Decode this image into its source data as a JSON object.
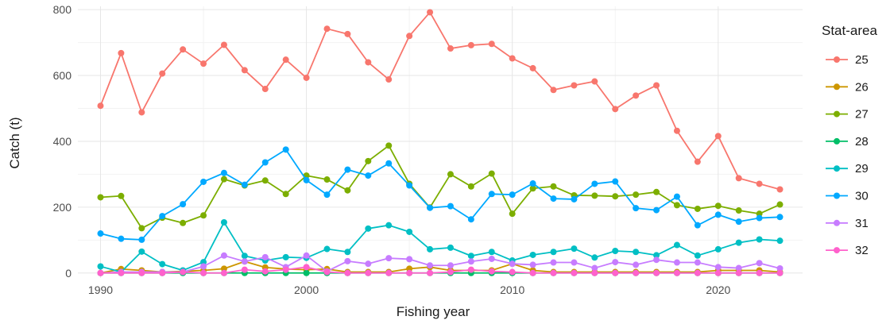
{
  "chart_data": {
    "type": "line",
    "title": "",
    "xlabel": "Fishing year",
    "ylabel": "Catch (t)",
    "xlim": [
      1988.9,
      2024.1
    ],
    "ylim": [
      -15,
      810
    ],
    "x_ticks": [
      1990,
      2000,
      2010,
      2020
    ],
    "y_ticks": [
      0,
      200,
      400,
      600,
      800
    ],
    "grid": true,
    "legend": {
      "title": "Stat-area",
      "position": "right"
    },
    "x": [
      1990,
      1991,
      1992,
      1993,
      1994,
      1995,
      1996,
      1997,
      1998,
      1999,
      2000,
      2001,
      2002,
      2003,
      2004,
      2005,
      2006,
      2007,
      2008,
      2009,
      2010,
      2011,
      2012,
      2013,
      2014,
      2015,
      2016,
      2017,
      2018,
      2019,
      2020,
      2021,
      2022,
      2023
    ],
    "series": [
      {
        "name": "25",
        "color": "#F8766D",
        "values": [
          508,
          668,
          488,
          606,
          679,
          636,
          693,
          616,
          559,
          648,
          593,
          742,
          726,
          640,
          588,
          720,
          792,
          682,
          692,
          696,
          652,
          622,
          556,
          570,
          582,
          498,
          539,
          570,
          432,
          338,
          416,
          288,
          271,
          254
        ]
      },
      {
        "name": "26",
        "color": "#CD9600",
        "values": [
          0,
          12,
          8,
          3,
          5,
          8,
          13,
          35,
          17,
          12,
          10,
          12,
          3,
          3,
          3,
          13,
          18,
          8,
          8,
          8,
          28,
          8,
          3,
          3,
          3,
          3,
          3,
          3,
          3,
          3,
          8,
          8,
          8,
          3
        ]
      },
      {
        "name": "27",
        "color": "#7CAE00",
        "values": [
          230,
          234,
          136,
          168,
          152,
          175,
          285,
          266,
          281,
          240,
          296,
          284,
          251,
          340,
          387,
          271,
          199,
          300,
          263,
          302,
          180,
          257,
          263,
          236,
          235,
          233,
          238,
          246,
          206,
          195,
          204,
          190,
          180,
          208
        ]
      },
      {
        "name": "28",
        "color": "#00BE67",
        "values": [
          0,
          0,
          0,
          0,
          0,
          0,
          0,
          0,
          0,
          0,
          0,
          0,
          0,
          0,
          0,
          0,
          0,
          0,
          0,
          0,
          0,
          0,
          0,
          0,
          0,
          0,
          0,
          0,
          0,
          0,
          0,
          0,
          0,
          0
        ]
      },
      {
        "name": "29",
        "color": "#00BFC4",
        "values": [
          20,
          3,
          65,
          27,
          8,
          33,
          154,
          52,
          38,
          48,
          46,
          73,
          64,
          135,
          145,
          125,
          72,
          77,
          52,
          64,
          38,
          55,
          64,
          74,
          47,
          67,
          64,
          54,
          85,
          53,
          72,
          92,
          102,
          98
        ]
      },
      {
        "name": "30",
        "color": "#00A9FF",
        "values": [
          120,
          104,
          101,
          173,
          209,
          277,
          304,
          268,
          336,
          375,
          282,
          238,
          314,
          296,
          333,
          266,
          198,
          203,
          163,
          240,
          238,
          272,
          226,
          224,
          271,
          278,
          197,
          191,
          232,
          145,
          177,
          156,
          167,
          170
        ]
      },
      {
        "name": "31",
        "color": "#C77CFF",
        "values": [
          0,
          3,
          3,
          3,
          3,
          20,
          53,
          35,
          48,
          18,
          53,
          5,
          36,
          28,
          45,
          42,
          23,
          23,
          35,
          43,
          28,
          25,
          32,
          32,
          15,
          33,
          25,
          40,
          32,
          32,
          18,
          15,
          30,
          14
        ]
      },
      {
        "name": "32",
        "color": "#FF61CC",
        "values": [
          0,
          0,
          0,
          0,
          3,
          0,
          0,
          10,
          5,
          10,
          18,
          3,
          0,
          0,
          0,
          0,
          0,
          3,
          10,
          5,
          3,
          0,
          0,
          0,
          0,
          0,
          0,
          0,
          0,
          0,
          0,
          0,
          0,
          0
        ]
      }
    ]
  }
}
